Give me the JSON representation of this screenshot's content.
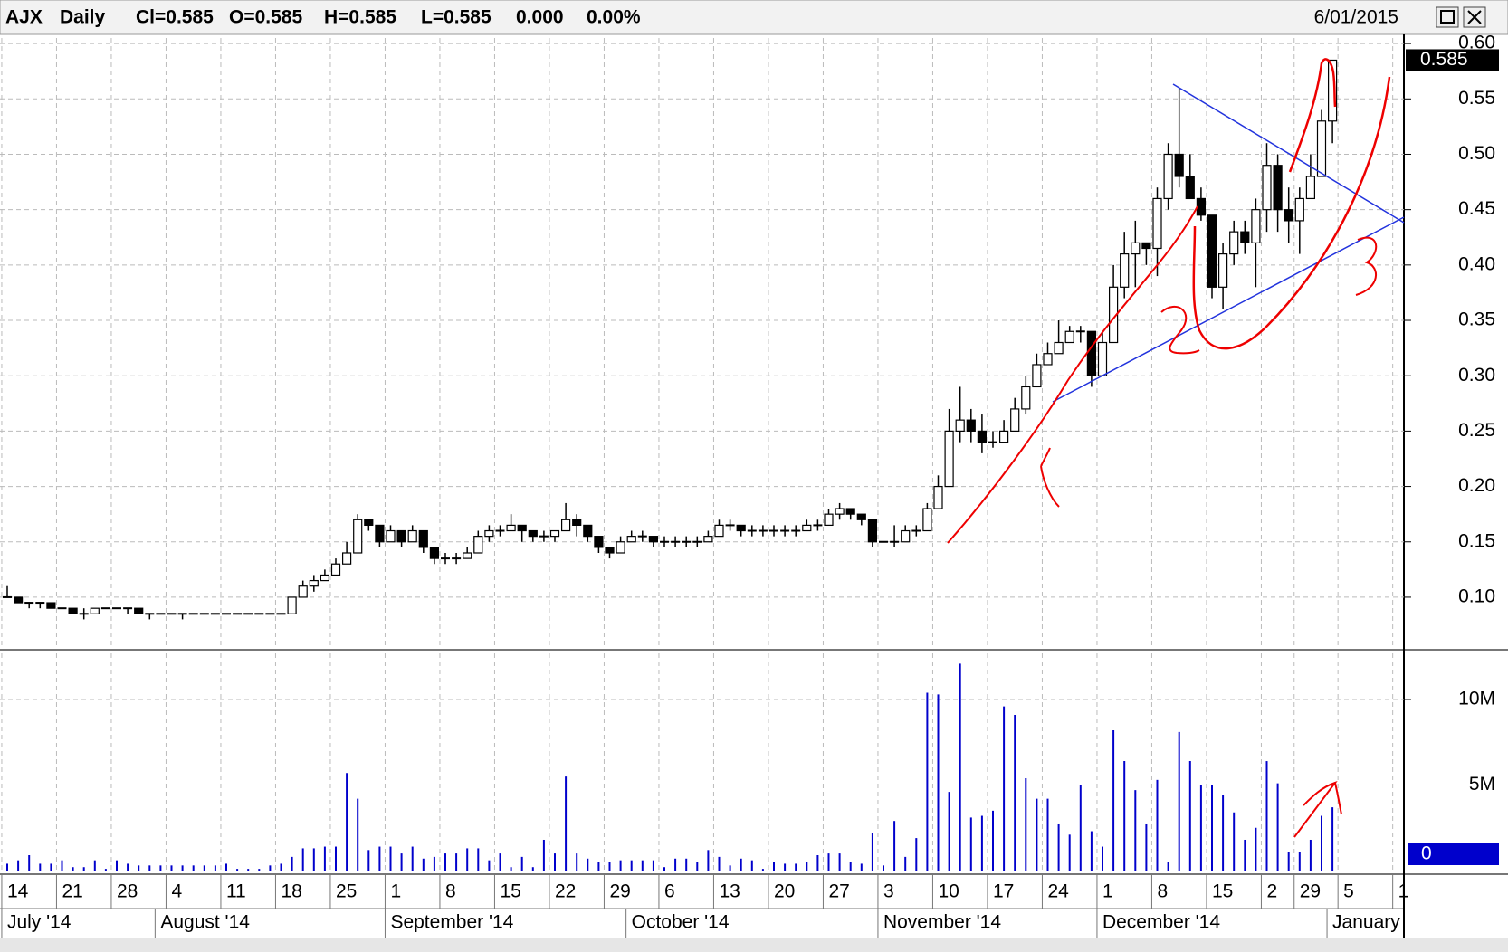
{
  "header": {
    "symbol": "AJX",
    "period": "Daily",
    "quote": [
      "Cl=0.585",
      "O=0.585",
      "H=0.585",
      "L=0.585",
      "0.000",
      "0.00%"
    ],
    "date": "6/01/2015"
  },
  "chart_data": {
    "type": "candlestick",
    "categories": [
      "14",
      null,
      null,
      null,
      null,
      "21",
      null,
      null,
      null,
      null,
      "28",
      null,
      null,
      null,
      null,
      "4",
      null,
      null,
      null,
      null,
      "11",
      null,
      null,
      null,
      null,
      "18",
      null,
      null,
      null,
      null,
      "25",
      null,
      null,
      null,
      null,
      "1",
      null,
      null,
      null,
      null,
      "8",
      null,
      null,
      null,
      null,
      "15",
      null,
      null,
      null,
      null,
      "22",
      null,
      null,
      null,
      null,
      "29",
      null,
      null,
      null,
      null,
      "6",
      null,
      null,
      null,
      null,
      "13",
      null,
      null,
      null,
      null,
      "20",
      null,
      null,
      null,
      null,
      "27",
      null,
      null,
      null,
      null,
      "3",
      null,
      null,
      null,
      null,
      "10",
      null,
      null,
      null,
      null,
      "17",
      null,
      null,
      null,
      null,
      "24",
      null,
      null,
      null,
      null,
      "1",
      null,
      null,
      null,
      null,
      "8",
      null,
      null,
      null,
      null,
      "15",
      null,
      null,
      null,
      null,
      "2",
      null,
      null,
      "29",
      null,
      null,
      null,
      "5",
      null,
      null,
      null,
      null,
      "1"
    ],
    "months": [
      "July '14",
      null,
      null,
      null,
      null,
      null,
      null,
      null,
      null,
      null,
      null,
      null,
      null,
      null,
      "August '14",
      null,
      null,
      null,
      null,
      null,
      null,
      null,
      null,
      null,
      null,
      null,
      null,
      null,
      null,
      null,
      null,
      null,
      null,
      null,
      null,
      "September '14",
      null,
      null,
      null,
      null,
      null,
      null,
      null,
      null,
      null,
      null,
      null,
      null,
      null,
      null,
      null,
      null,
      null,
      null,
      null,
      null,
      null,
      "October '14",
      null,
      null,
      null,
      null,
      null,
      null,
      null,
      null,
      null,
      null,
      null,
      null,
      null,
      null,
      null,
      null,
      null,
      null,
      null,
      null,
      null,
      null,
      "November '14",
      null,
      null,
      null,
      null,
      null,
      null,
      null,
      null,
      null,
      null,
      null,
      null,
      null,
      null,
      null,
      null,
      null,
      null,
      null,
      "December '14",
      null,
      null,
      null,
      null,
      null,
      null,
      null,
      null,
      null,
      null,
      null,
      null,
      null,
      null,
      null,
      null,
      null,
      null,
      null,
      null,
      "January",
      null,
      null,
      null,
      null,
      null,
      null
    ],
    "open": [
      0.1,
      0.1,
      0.095,
      0.095,
      0.095,
      0.09,
      0.09,
      0.085,
      0.085,
      0.09,
      0.09,
      0.09,
      0.09,
      0.085,
      0.085,
      0.085,
      0.085,
      0.085,
      0.085,
      0.085,
      0.085,
      0.085,
      0.085,
      0.085,
      0.085,
      0.085,
      0.085,
      0.1,
      0.11,
      0.115,
      0.12,
      0.13,
      0.14,
      0.17,
      0.165,
      0.15,
      0.16,
      0.15,
      0.16,
      0.145,
      0.135,
      0.135,
      0.135,
      0.14,
      0.155,
      0.16,
      0.16,
      0.165,
      0.16,
      0.155,
      0.155,
      0.16,
      0.17,
      0.165,
      0.155,
      0.145,
      0.14,
      0.15,
      0.155,
      0.155,
      0.15,
      0.15,
      0.15,
      0.15,
      0.15,
      0.155,
      0.165,
      0.165,
      0.16,
      0.16,
      0.16,
      0.16,
      0.16,
      0.16,
      0.165,
      0.165,
      0.175,
      0.18,
      0.175,
      0.17,
      0.15,
      0.15,
      0.15,
      0.16,
      0.16,
      0.18,
      0.2,
      0.25,
      0.26,
      0.25,
      0.24,
      0.24,
      0.25,
      0.27,
      0.29,
      0.31,
      0.32,
      0.33,
      0.34,
      0.34,
      0.3,
      0.33,
      0.38,
      0.41,
      0.42,
      0.415,
      0.46,
      0.5,
      0.48,
      0.46,
      0.445,
      0.38,
      0.41,
      0.43,
      0.42,
      0.45,
      0.49,
      0.45,
      0.44,
      0.46,
      0.48,
      0.53,
      null,
      null,
      null,
      null,
      null,
      null
    ],
    "high": [
      0.11,
      0.1,
      0.095,
      0.095,
      0.095,
      0.09,
      0.09,
      0.09,
      0.09,
      0.09,
      0.09,
      0.09,
      0.09,
      0.085,
      0.085,
      0.085,
      0.085,
      0.085,
      0.085,
      0.085,
      0.085,
      0.085,
      0.085,
      0.085,
      0.085,
      0.085,
      0.1,
      0.115,
      0.12,
      0.125,
      0.135,
      0.15,
      0.175,
      0.17,
      0.165,
      0.165,
      0.16,
      0.165,
      0.16,
      0.145,
      0.14,
      0.14,
      0.145,
      0.16,
      0.165,
      0.165,
      0.175,
      0.165,
      0.16,
      0.16,
      0.16,
      0.185,
      0.175,
      0.165,
      0.155,
      0.145,
      0.155,
      0.16,
      0.16,
      0.155,
      0.155,
      0.155,
      0.155,
      0.155,
      0.16,
      0.17,
      0.17,
      0.165,
      0.165,
      0.165,
      0.165,
      0.165,
      0.165,
      0.17,
      0.17,
      0.18,
      0.185,
      0.18,
      0.175,
      0.17,
      0.15,
      0.165,
      0.165,
      0.165,
      0.185,
      0.21,
      0.27,
      0.29,
      0.27,
      0.265,
      0.25,
      0.26,
      0.28,
      0.3,
      0.32,
      0.33,
      0.35,
      0.345,
      0.345,
      0.34,
      0.34,
      0.4,
      0.43,
      0.44,
      0.42,
      0.47,
      0.51,
      0.56,
      0.5,
      0.47,
      0.445,
      0.42,
      0.44,
      0.44,
      0.46,
      0.51,
      0.5,
      0.47,
      0.47,
      0.5,
      0.54,
      0.585,
      null,
      null,
      null,
      null,
      null,
      null
    ],
    "low": [
      0.1,
      0.095,
      0.09,
      0.09,
      0.09,
      0.09,
      0.085,
      0.08,
      0.085,
      0.09,
      0.09,
      0.085,
      0.085,
      0.08,
      0.085,
      0.085,
      0.08,
      0.085,
      0.085,
      0.085,
      0.085,
      0.085,
      0.085,
      0.085,
      0.085,
      0.085,
      0.085,
      0.1,
      0.105,
      0.115,
      0.12,
      0.13,
      0.14,
      0.16,
      0.145,
      0.15,
      0.145,
      0.15,
      0.14,
      0.13,
      0.13,
      0.13,
      0.135,
      0.14,
      0.15,
      0.155,
      0.16,
      0.15,
      0.15,
      0.15,
      0.15,
      0.16,
      0.155,
      0.15,
      0.14,
      0.135,
      0.14,
      0.15,
      0.15,
      0.145,
      0.145,
      0.145,
      0.145,
      0.145,
      0.15,
      0.155,
      0.16,
      0.155,
      0.155,
      0.155,
      0.155,
      0.155,
      0.155,
      0.16,
      0.16,
      0.165,
      0.17,
      0.17,
      0.165,
      0.145,
      0.15,
      0.145,
      0.15,
      0.155,
      0.16,
      0.18,
      0.2,
      0.24,
      0.24,
      0.23,
      0.235,
      0.24,
      0.25,
      0.265,
      0.29,
      0.31,
      0.32,
      0.33,
      0.33,
      0.29,
      0.3,
      0.33,
      0.37,
      0.38,
      0.4,
      0.39,
      0.45,
      0.47,
      0.46,
      0.44,
      0.37,
      0.36,
      0.4,
      0.41,
      0.38,
      0.43,
      0.43,
      0.42,
      0.41,
      0.46,
      0.48,
      0.51,
      null,
      null,
      null,
      null,
      null,
      null
    ],
    "close": [
      0.1,
      0.095,
      0.095,
      0.095,
      0.09,
      0.09,
      0.085,
      0.085,
      0.09,
      0.09,
      0.09,
      0.09,
      0.085,
      0.085,
      0.085,
      0.085,
      0.085,
      0.085,
      0.085,
      0.085,
      0.085,
      0.085,
      0.085,
      0.085,
      0.085,
      0.085,
      0.1,
      0.11,
      0.115,
      0.12,
      0.13,
      0.14,
      0.17,
      0.165,
      0.15,
      0.16,
      0.15,
      0.16,
      0.145,
      0.135,
      0.135,
      0.135,
      0.14,
      0.155,
      0.16,
      0.16,
      0.165,
      0.16,
      0.155,
      0.155,
      0.16,
      0.17,
      0.165,
      0.155,
      0.145,
      0.14,
      0.15,
      0.155,
      0.155,
      0.15,
      0.15,
      0.15,
      0.15,
      0.15,
      0.155,
      0.165,
      0.165,
      0.16,
      0.16,
      0.16,
      0.16,
      0.16,
      0.16,
      0.165,
      0.165,
      0.175,
      0.18,
      0.175,
      0.17,
      0.15,
      0.15,
      0.15,
      0.16,
      0.16,
      0.18,
      0.2,
      0.25,
      0.26,
      0.25,
      0.24,
      0.24,
      0.25,
      0.27,
      0.29,
      0.31,
      0.32,
      0.33,
      0.34,
      0.34,
      0.3,
      0.33,
      0.38,
      0.41,
      0.42,
      0.415,
      0.46,
      0.5,
      0.48,
      0.46,
      0.445,
      0.38,
      0.41,
      0.43,
      0.42,
      0.45,
      0.49,
      0.45,
      0.44,
      0.46,
      0.48,
      0.53,
      0.585,
      null,
      null,
      null,
      null,
      null,
      null
    ],
    "volume": [
      400000,
      600000,
      900000,
      400000,
      400000,
      600000,
      200000,
      200000,
      600000,
      100000,
      600000,
      400000,
      300000,
      300000,
      300000,
      300000,
      300000,
      300000,
      300000,
      300000,
      400000,
      100000,
      100000,
      100000,
      300000,
      400000,
      800000,
      1300000,
      1300000,
      1400000,
      1400000,
      5700000,
      4200000,
      1200000,
      1400000,
      1400000,
      1000000,
      1400000,
      700000,
      800000,
      1000000,
      1000000,
      1300000,
      1300000,
      600000,
      1000000,
      200000,
      800000,
      200000,
      1800000,
      1000000,
      5500000,
      1000000,
      700000,
      500000,
      500000,
      600000,
      600000,
      600000,
      600000,
      200000,
      700000,
      700000,
      500000,
      1200000,
      800000,
      300000,
      700000,
      600000,
      100000,
      500000,
      400000,
      400000,
      500000,
      900000,
      1000000,
      1000000,
      500000,
      400000,
      2200000,
      300000,
      2900000,
      800000,
      1900000,
      10400000,
      10300000,
      4600000,
      12100000,
      3100000,
      3200000,
      3500000,
      9600000,
      9100000,
      5400000,
      4200000,
      4200000,
      2700000,
      2100000,
      5000000,
      2300000,
      1400000,
      8200000,
      6400000,
      4700000,
      2700000,
      5300000,
      500000,
      8100000,
      6400000,
      5000000,
      5000000,
      4400000,
      3400000,
      1800000,
      2500000,
      6400000,
      5100000,
      1100000,
      1100000,
      1800000,
      3200000,
      3700000,
      null,
      null,
      null,
      null,
      null,
      null
    ],
    "ylim": [
      0.055,
      0.605
    ],
    "yticks": [
      {
        "value": 0.1,
        "label": "0.10"
      },
      0.15,
      {
        "value": 0.2,
        "label": "0.20"
      },
      0.25,
      {
        "value": 0.3,
        "label": "0.30"
      },
      0.35,
      {
        "value": 0.4,
        "label": "0.40"
      },
      0.45,
      {
        "value": 0.5,
        "label": "0.50"
      },
      0.55,
      {
        "value": 0.6,
        "label": "0.60"
      }
    ],
    "vlim": [
      0,
      12700000
    ],
    "vticks": [
      0,
      {
        "value": 5000000,
        "label": "5M"
      },
      {
        "value": 10000000,
        "label": "10M"
      }
    ],
    "last_price": 0.585,
    "last_volume": 0,
    "grid": true,
    "volume_color": "#0000cc"
  }
}
